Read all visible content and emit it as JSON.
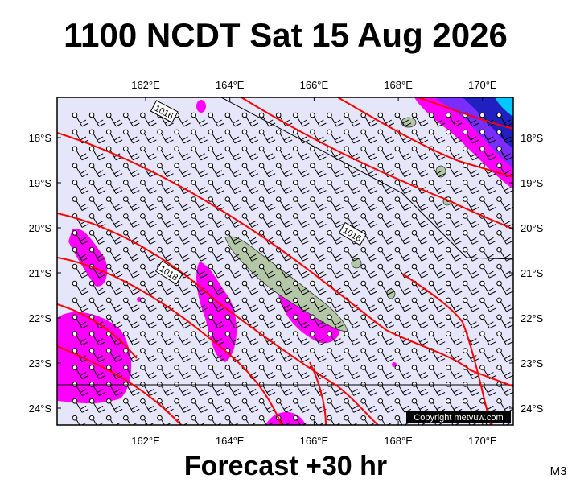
{
  "header": {
    "title": "1100 NCDT Sat 15 Aug 2026"
  },
  "map": {
    "lon_ticks": [
      {
        "value": 162,
        "label": "162°E"
      },
      {
        "value": 164,
        "label": "164°E"
      },
      {
        "value": 166,
        "label": "166°E"
      },
      {
        "value": 168,
        "label": "168°E"
      },
      {
        "value": 170,
        "label": "170°E"
      }
    ],
    "lat_ticks": [
      {
        "value": -18,
        "label": "18°S"
      },
      {
        "value": -19,
        "label": "19°S"
      },
      {
        "value": -20,
        "label": "20°S"
      },
      {
        "value": -21,
        "label": "21°S"
      },
      {
        "value": -22,
        "label": "22°S"
      },
      {
        "value": -23,
        "label": "23°S"
      },
      {
        "value": -24,
        "label": "24°S"
      }
    ],
    "isobar_labels": [
      "1016",
      "1018",
      "1016"
    ],
    "copyright": "Copyright metvuw.com"
  },
  "footer": {
    "caption": "Forecast +30 hr",
    "code": "M3"
  }
}
